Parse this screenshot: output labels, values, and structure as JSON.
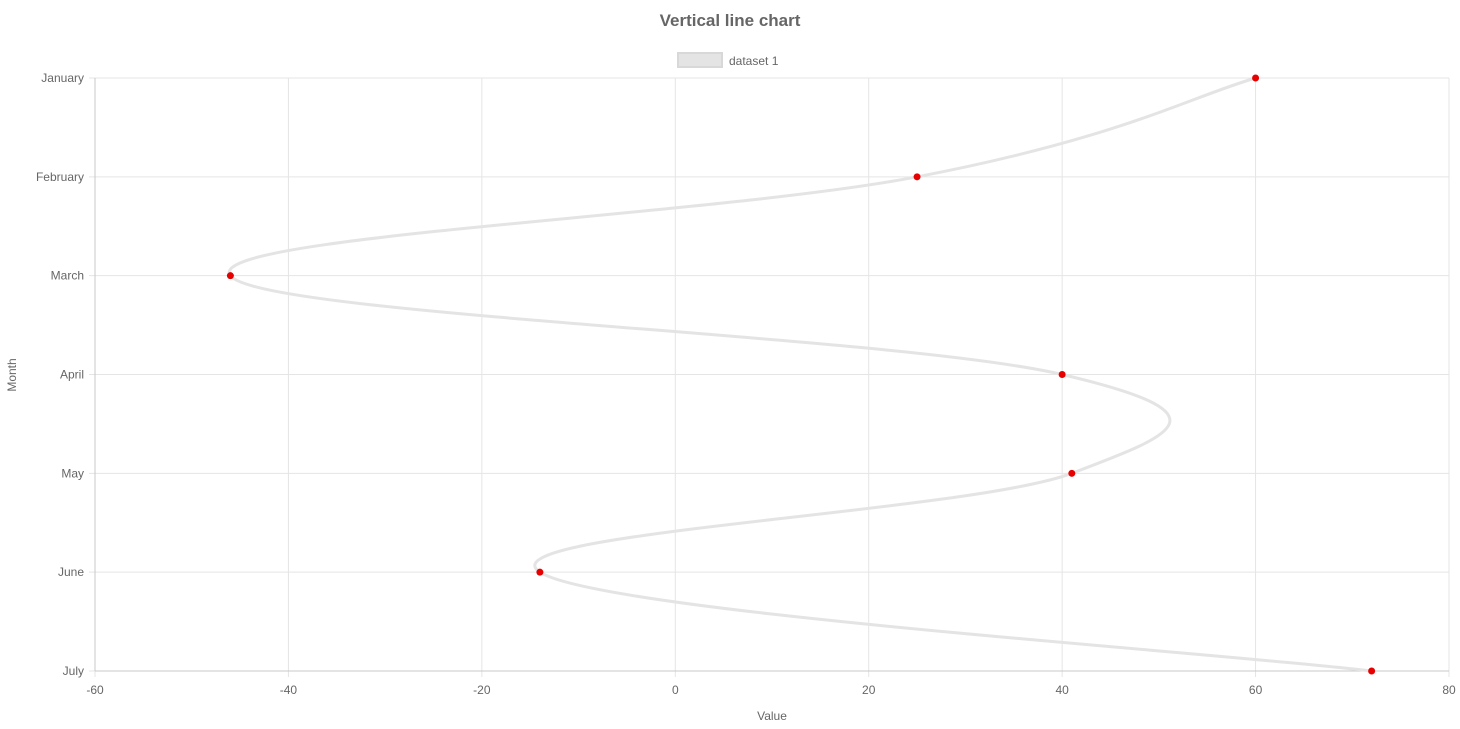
{
  "chart_data": {
    "type": "line",
    "orientation": "vertical",
    "title": "Vertical line chart",
    "xlabel": "Value",
    "ylabel": "Month",
    "xlim": [
      -60,
      80
    ],
    "x_ticks": [
      -60,
      -40,
      -20,
      0,
      20,
      40,
      60,
      80
    ],
    "categories": [
      "January",
      "February",
      "March",
      "April",
      "May",
      "June",
      "July"
    ],
    "series": [
      {
        "name": "dataset 1",
        "values": [
          60,
          25,
          -46,
          40,
          41,
          -14,
          72
        ],
        "line_color": "#e4e4e4",
        "point_color": "#e60000"
      }
    ],
    "grid": true,
    "legend": "top"
  }
}
